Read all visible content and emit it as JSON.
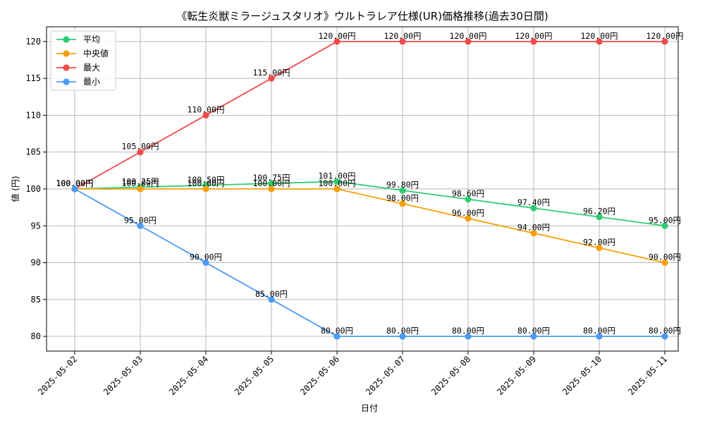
{
  "chart_data": {
    "type": "line",
    "title": "《転生炎獣ミラージュスタリオ》ウルトラレア仕様(UR)価格推移(過去30日間)",
    "xlabel": "日付",
    "ylabel": "値 (円)",
    "categories": [
      "2025-05-02",
      "2025-05-03",
      "2025-05-04",
      "2025-05-05",
      "2025-05-06",
      "2025-05-07",
      "2025-05-08",
      "2025-05-09",
      "2025-05-10",
      "2025-05-11"
    ],
    "ylim": [
      78,
      122
    ],
    "yticks": [
      80,
      85,
      90,
      95,
      100,
      105,
      110,
      115,
      120
    ],
    "grid": true,
    "legend_position": "top-left",
    "label_suffix": "円",
    "series": [
      {
        "name": "平均",
        "color": "#2ecc71",
        "values": [
          100.0,
          100.25,
          100.5,
          100.75,
          101.0,
          99.8,
          98.6,
          97.4,
          96.2,
          95.0
        ]
      },
      {
        "name": "中央値",
        "color": "#f5a00a",
        "values": [
          100.0,
          100.0,
          100.0,
          100.0,
          100.0,
          98.0,
          96.0,
          94.0,
          92.0,
          90.0
        ]
      },
      {
        "name": "最大",
        "color": "#ef4b4b",
        "values": [
          100.0,
          105.0,
          110.0,
          115.0,
          120.0,
          120.0,
          120.0,
          120.0,
          120.0,
          120.0
        ]
      },
      {
        "name": "最小",
        "color": "#4b9bf5",
        "values": [
          100.0,
          95.0,
          90.0,
          85.0,
          80.0,
          80.0,
          80.0,
          80.0,
          80.0,
          80.0
        ]
      }
    ]
  }
}
